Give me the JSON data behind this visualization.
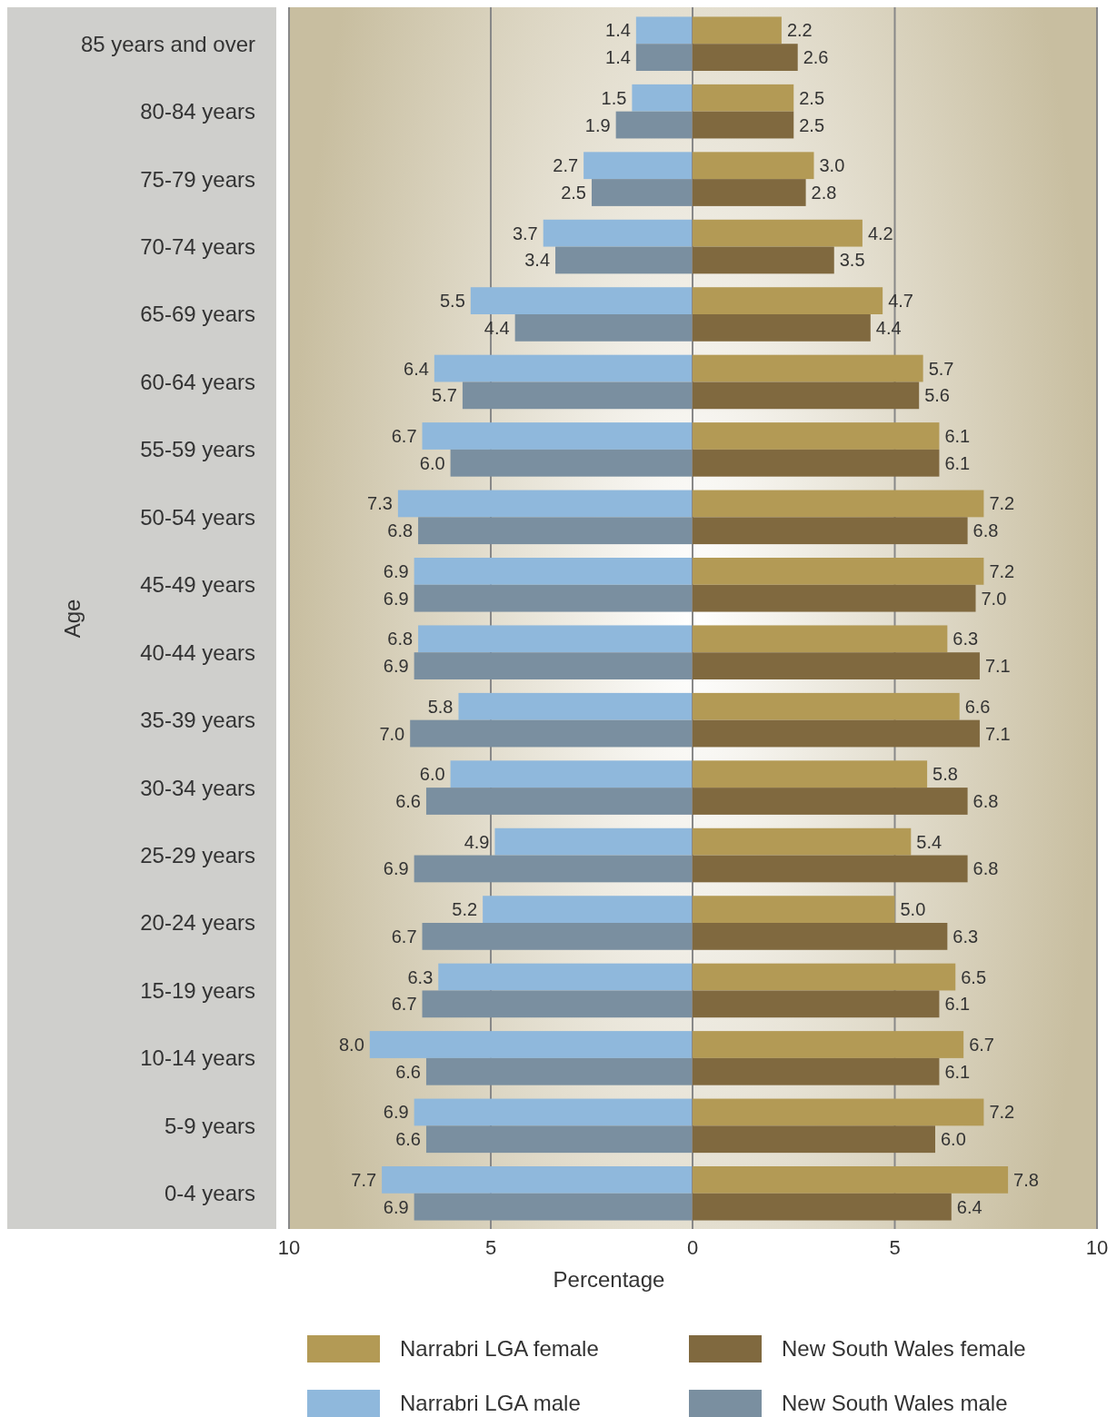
{
  "chart_data": [
    {
      "type": "bar",
      "orientation": "horizontal",
      "xlabel": "Percentage",
      "ylabel": "Age",
      "categories": [
        "85 years and over",
        "80-84 years",
        "75-79 years",
        "70-74 years",
        "65-69 years",
        "60-64 years",
        "55-59 years",
        "50-54 years",
        "45-49 years",
        "40-44 years",
        "35-39 years",
        "30-34 years",
        "25-29 years",
        "20-24 years",
        "15-19 years",
        "10-14 years",
        "5-9 years",
        "0-4 years"
      ],
      "series": [
        {
          "name": "Narrabri LGA male",
          "color": "#8fb8dc",
          "values": [
            1.4,
            1.5,
            2.7,
            3.7,
            5.5,
            6.4,
            6.7,
            7.3,
            6.9,
            6.8,
            5.8,
            6.0,
            4.9,
            5.2,
            6.3,
            8.0,
            6.9,
            7.7
          ],
          "value_labels": [
            "1.4",
            "1.5",
            "2.7",
            "3.7",
            "5.5",
            "6.4",
            "6.7",
            "7.3",
            "6.9",
            "6.8",
            "5.8",
            "6.0",
            "4.9",
            "5.2",
            "6.3",
            "8.0",
            "6.9",
            "7.7"
          ]
        },
        {
          "name": "New South Wales male",
          "color": "#7a8fa0",
          "values": [
            1.4,
            1.9,
            2.5,
            3.4,
            4.4,
            5.7,
            6.0,
            6.8,
            6.9,
            6.9,
            7.0,
            6.6,
            6.9,
            6.7,
            6.7,
            6.6,
            6.6,
            6.9
          ],
          "value_labels": [
            "1.4",
            "1.9",
            "2.5",
            "3.4",
            "4.4",
            "5.7",
            "6.0",
            "6.8",
            "6.9",
            "6.9",
            "7.0",
            "6.6",
            "6.9",
            "6.7",
            "6.7",
            "6.6",
            "6.6",
            "6.9"
          ]
        }
      ],
      "xlim": [
        10,
        0
      ],
      "xticks": [
        10,
        5,
        {
          "value": 0,
          "label": null
        }
      ],
      "grid": "x",
      "legend": "bottom"
    },
    {
      "type": "bar",
      "orientation": "horizontal",
      "categories": [
        null,
        null,
        null,
        null,
        null,
        null,
        null,
        null,
        null,
        null,
        null,
        null,
        null,
        null,
        null,
        null,
        null,
        null
      ],
      "series": [
        {
          "name": "Narrabri LGA female",
          "color": "#b39a55",
          "values": [
            2.2,
            2.5,
            3.0,
            4.2,
            4.7,
            5.7,
            6.1,
            7.2,
            7.2,
            6.3,
            6.6,
            5.8,
            5.4,
            5.0,
            6.5,
            6.7,
            7.2,
            7.8
          ],
          "value_labels": [
            "2.2",
            "2.5",
            "3.0",
            "4.2",
            "4.7",
            "5.7",
            "6.1",
            "7.2",
            "7.2",
            "6.3",
            "6.6",
            "5.8",
            "5.4",
            "5.0",
            "6.5",
            "6.7",
            "7.2",
            "7.8"
          ]
        },
        {
          "name": "New South Wales female",
          "color": "#80693f",
          "values": [
            2.6,
            2.5,
            2.8,
            3.5,
            4.4,
            5.6,
            6.1,
            6.8,
            7.0,
            7.1,
            7.1,
            6.8,
            6.8,
            6.3,
            6.1,
            6.1,
            6.0,
            6.4
          ],
          "value_labels": [
            "2.6",
            "2.5",
            "2.8",
            "3.5",
            "4.4",
            "5.6",
            "6.1",
            "6.8",
            "7.0",
            "7.1",
            "7.1",
            "6.8",
            "6.8",
            "6.3",
            "6.1",
            "6.1",
            "6.0",
            "6.4"
          ]
        }
      ],
      "xlim": [
        0,
        10
      ],
      "xticks": [
        0,
        5,
        10
      ],
      "grid": "x",
      "legend": "bottom",
      "tick_labels": "x"
    }
  ]
}
